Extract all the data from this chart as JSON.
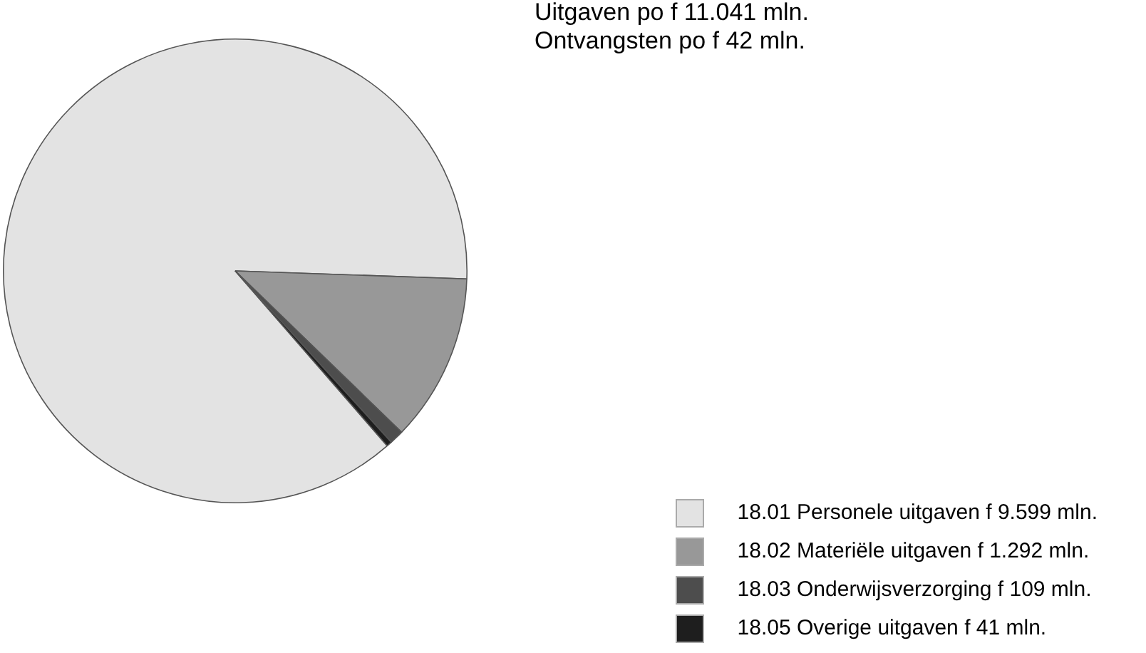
{
  "chart_data": {
    "type": "pie",
    "title": "Uitgaven po f 11.041 mln.",
    "subtitle": "Ontvangsten po f 42 mln.",
    "categories": [
      "18.01 Personele uitgaven",
      "18.02 Materiële uitgaven",
      "18.03 Onderwijsverzorging",
      "18.05 Overige uitgaven"
    ],
    "values": [
      9599,
      1292,
      109,
      41
    ],
    "value_labels": [
      "f 9.599 mln.",
      "f 1.292 mln.",
      "f 109 mln.",
      "f 41 mln."
    ],
    "colors": [
      "#e3e3e3",
      "#989898",
      "#4d4d4d",
      "#1e1e1e"
    ],
    "legend": "bottom right"
  }
}
